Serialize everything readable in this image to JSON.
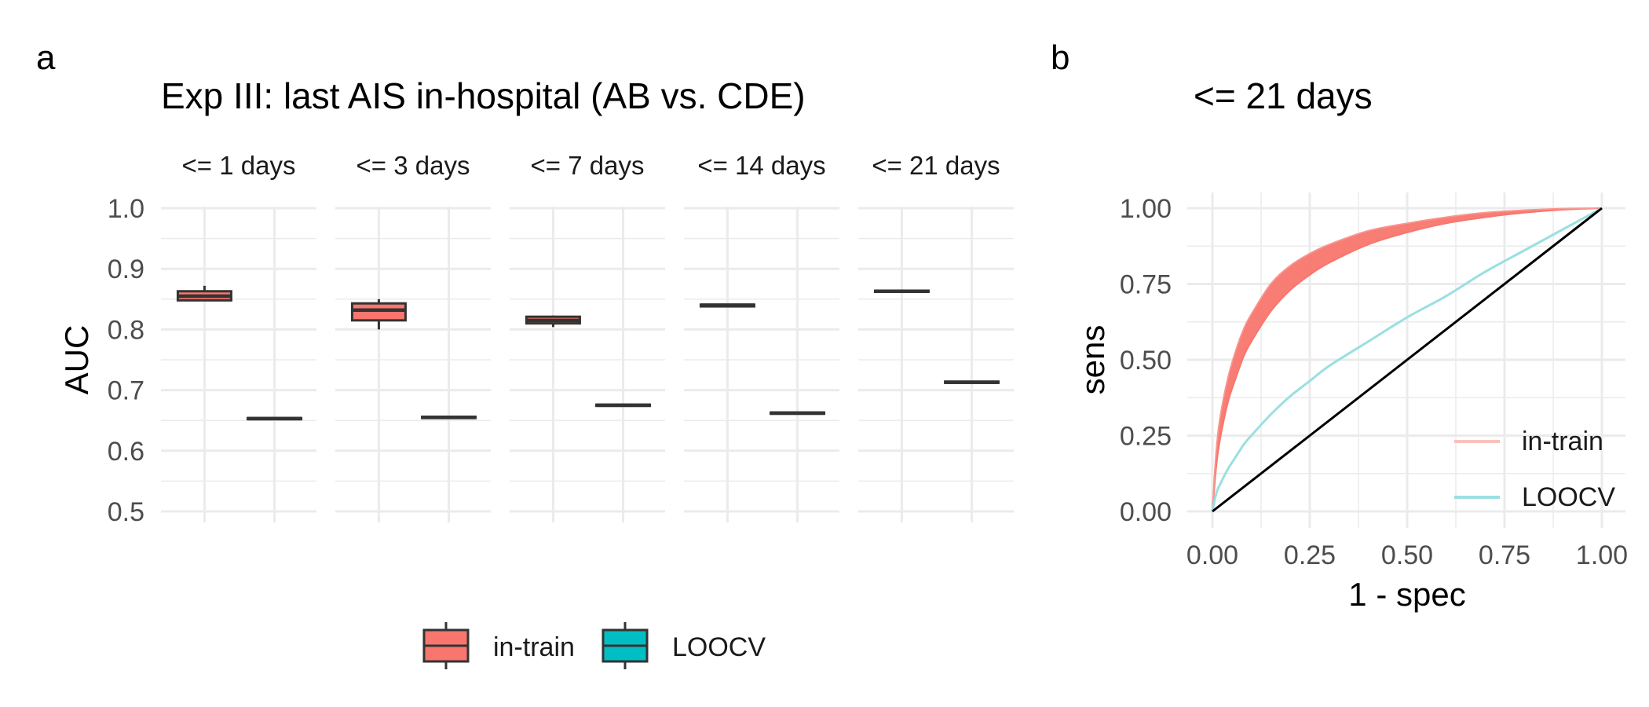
{
  "panels": {
    "a": {
      "tag": "a"
    },
    "b": {
      "tag": "b"
    }
  },
  "colors": {
    "in_train": "#F8766D",
    "loocv": "#00BFC4",
    "loocv_line": "#9ADFE2",
    "grid": "#EBEBEB",
    "text": "#4D4D4D",
    "box_stroke": "#333333",
    "diagonal": "#000000"
  },
  "chart_data": [
    {
      "type": "box",
      "title": "Exp III: last AIS in-hospital (AB vs. CDE)",
      "xlabel": "",
      "ylabel": "AUC",
      "ylim": [
        0.5,
        1.0
      ],
      "yticks": [
        0.5,
        0.6,
        0.7,
        0.8,
        0.9,
        1.0
      ],
      "ytick_labels": [
        "0.5",
        "0.6",
        "0.7",
        "0.8",
        "0.9",
        "1.0"
      ],
      "grid": true,
      "facets": [
        {
          "label": "<= 1 days",
          "in_train": {
            "min": 0.848,
            "q1": 0.848,
            "median": 0.855,
            "q3": 0.863,
            "max": 0.872
          },
          "loocv": {
            "min": 0.651,
            "q1": 0.652,
            "median": 0.653,
            "q3": 0.654,
            "max": 0.655
          }
        },
        {
          "label": "<= 3 days",
          "in_train": {
            "min": 0.8,
            "q1": 0.815,
            "median": 0.832,
            "q3": 0.843,
            "max": 0.85
          },
          "loocv": {
            "min": 0.653,
            "q1": 0.654,
            "median": 0.655,
            "q3": 0.656,
            "max": 0.657
          }
        },
        {
          "label": "<= 7 days",
          "in_train": {
            "min": 0.804,
            "q1": 0.81,
            "median": 0.815,
            "q3": 0.821,
            "max": 0.823
          },
          "loocv": {
            "min": 0.673,
            "q1": 0.674,
            "median": 0.675,
            "q3": 0.676,
            "max": 0.677
          }
        },
        {
          "label": "<= 14 days",
          "in_train": {
            "min": 0.837,
            "q1": 0.838,
            "median": 0.84,
            "q3": 0.841,
            "max": 0.842
          },
          "loocv": {
            "min": 0.66,
            "q1": 0.661,
            "median": 0.662,
            "q3": 0.663,
            "max": 0.664
          }
        },
        {
          "label": "<= 21 days",
          "in_train": {
            "min": 0.861,
            "q1": 0.862,
            "median": 0.863,
            "q3": 0.864,
            "max": 0.866
          },
          "loocv": {
            "min": 0.711,
            "q1": 0.712,
            "median": 0.713,
            "q3": 0.714,
            "max": 0.715
          }
        }
      ],
      "legend": {
        "placement": "bottom",
        "entries": [
          "in-train",
          "LOOCV"
        ]
      }
    },
    {
      "type": "line",
      "title": "<= 21 days",
      "xlabel": "1 - spec",
      "ylabel": "sens",
      "xlim": [
        0,
        1
      ],
      "ylim": [
        0,
        1
      ],
      "xticks": [
        0,
        0.25,
        0.5,
        0.75,
        1.0
      ],
      "xtick_labels": [
        "0.00",
        "0.25",
        "0.50",
        "0.75",
        "1.00"
      ],
      "yticks": [
        0,
        0.25,
        0.5,
        0.75,
        1.0
      ],
      "ytick_labels": [
        "0.00",
        "0.25",
        "0.50",
        "0.75",
        "1.00"
      ],
      "grid": true,
      "legend": {
        "placement": "bottom-right",
        "entries": [
          "in-train",
          "LOOCV"
        ]
      },
      "series": [
        {
          "name": "in-train",
          "band": true,
          "x": [
            0,
            0.01,
            0.02,
            0.04,
            0.06,
            0.08,
            0.1,
            0.15,
            0.2,
            0.25,
            0.3,
            0.4,
            0.5,
            0.6,
            0.7,
            0.8,
            0.9,
            1.0
          ],
          "y_lower": [
            0,
            0.15,
            0.24,
            0.36,
            0.44,
            0.51,
            0.56,
            0.66,
            0.73,
            0.78,
            0.82,
            0.88,
            0.92,
            0.95,
            0.97,
            0.985,
            0.995,
            1.0
          ],
          "y_upper": [
            0,
            0.2,
            0.31,
            0.44,
            0.53,
            0.6,
            0.65,
            0.75,
            0.81,
            0.85,
            0.88,
            0.925,
            0.95,
            0.97,
            0.985,
            0.993,
            0.998,
            1.0
          ]
        },
        {
          "name": "LOOCV",
          "x": [
            0,
            0.01,
            0.02,
            0.04,
            0.06,
            0.08,
            0.1,
            0.15,
            0.2,
            0.25,
            0.3,
            0.4,
            0.5,
            0.6,
            0.7,
            0.8,
            0.9,
            1.0
          ],
          "y": [
            0,
            0.06,
            0.09,
            0.14,
            0.18,
            0.22,
            0.25,
            0.32,
            0.38,
            0.43,
            0.48,
            0.56,
            0.64,
            0.71,
            0.79,
            0.86,
            0.93,
            1.0
          ]
        },
        {
          "name": "",
          "x": [
            0,
            1
          ],
          "y": [
            0,
            1
          ]
        }
      ]
    }
  ]
}
